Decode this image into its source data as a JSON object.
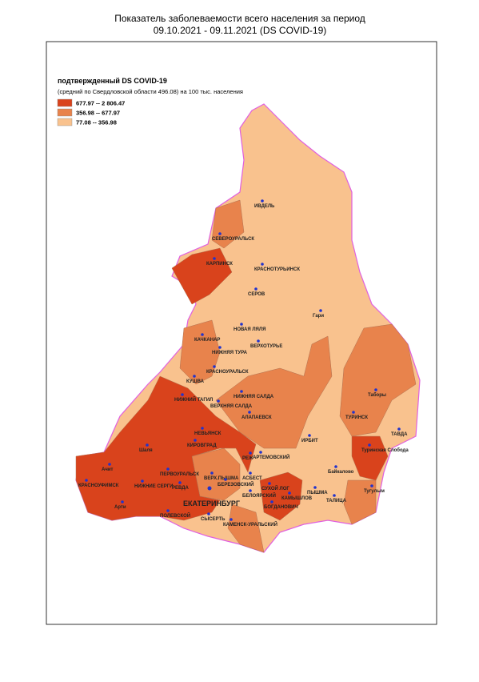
{
  "header": {
    "title_line1": "Показатель заболеваемости всего населения за период",
    "title_line2": "09.10.2021 - 09.11.2021 (DS  COVID-19)"
  },
  "legend": {
    "title": "подтвержденный DS  COVID-19",
    "subtitle": "(средний по Свердловской области 496.08)  на 100 тыс. населения",
    "items": [
      {
        "label": "677.97 -- 2 806.47",
        "color": "#d9431c"
      },
      {
        "label": "356.98 --    677.97",
        "color": "#e8834c"
      },
      {
        "label": "77.08 --    356.98",
        "color": "#f9c28e"
      }
    ]
  },
  "cities": [
    "ИВДЕЛЬ",
    "СЕВЕРОУРАЛЬСК",
    "КАРПИНСК",
    "КРАСНОТУРЬИНСК",
    "СЕРОВ",
    "Гари",
    "НОВАЯ ЛЯЛЯ",
    "КАЧКАНАР",
    "ВЕРХОТУРЬЕ",
    "НИЖНЯЯ ТУРА",
    "КРАСНОУРАЛЬСК",
    "КУШВА",
    "Таборы",
    "НИЖНИЙ ТАГИЛ",
    "НИЖНЯЯ САЛДА",
    "ВЕРХНЯЯ САЛДА",
    "АЛАПАЕВСК",
    "ТУРИНСК",
    "ТАВДА",
    "НЕВЬЯНСК",
    "ИРБИТ",
    "Шаля",
    "КИРОВГРАД",
    "Туринская Слобода",
    "РЕЖ",
    "АРТЕМОВСКИЙ",
    "Байкалово",
    "Ачит",
    "ПЕРВОУРАЛЬСК",
    "ВЕРХ.ПЫШМА",
    "АСБЕСТ",
    "Тугулым",
    "КРАСНОУФИМСК",
    "НИЖНИЕ СЕРГИ",
    "РЕВДА",
    "БЕРЕЗОВСКИЙ",
    "СУХОЙ ЛОГ",
    "ПЫШМА",
    "КАМЫШЛОВ",
    "Арти",
    "БЕЛОЯРСКИЙ",
    "ТАЛИЦА",
    "ПОЛЕВСКОЙ",
    "БОГДАНОВИЧ",
    "СЫСЕРТЬ",
    "КАМЕНСК-УРАЛЬСКИЙ"
  ],
  "capital": "ЕКАТЕРИНБУРГ"
}
